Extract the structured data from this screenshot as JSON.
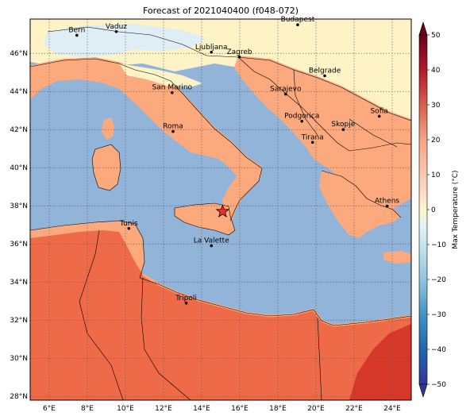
{
  "title": "Forecast of 2021040400 (f048-072)",
  "colorbar": {
    "label": "Max Temperature (°C)",
    "ticks": [
      "50",
      "40",
      "30",
      "20",
      "10",
      "0",
      "−10",
      "−20",
      "−30",
      "−40",
      "−50"
    ],
    "colors": [
      "#67001f",
      "#b2182b",
      "#d6604d",
      "#f4a582",
      "#fddbc7",
      "#fff6c8",
      "#e0f3f8",
      "#92c5de",
      "#4393c3",
      "#2166ac",
      "#313695"
    ]
  },
  "axes": {
    "lon_ticks": [
      "6°E",
      "8°E",
      "10°E",
      "12°E",
      "14°E",
      "16°E",
      "18°E",
      "20°E",
      "22°E",
      "24°E"
    ],
    "lat_ticks": [
      "46°N",
      "44°N",
      "42°N",
      "40°N",
      "38°N",
      "36°N",
      "34°N",
      "32°N",
      "30°N",
      "28°N"
    ]
  },
  "fill_colors": {
    "sea": "#91b4d8",
    "cool": "#fdf3c6",
    "pale": "#dfeef5",
    "warm": "#fca97e",
    "hot": "#ef6a48",
    "very_hot": "#d6382a"
  },
  "cities": [
    {
      "name": "Bern",
      "lon": 7.45,
      "lat": 46.95
    },
    {
      "name": "Vaduz",
      "lon": 9.52,
      "lat": 47.14
    },
    {
      "name": "Budapest",
      "lon": 19.04,
      "lat": 47.5
    },
    {
      "name": "Ljubljana",
      "lon": 14.51,
      "lat": 46.06
    },
    {
      "name": "Zagreb",
      "lon": 15.98,
      "lat": 45.81
    },
    {
      "name": "Belgrade",
      "lon": 20.46,
      "lat": 44.82
    },
    {
      "name": "San Marino",
      "lon": 12.45,
      "lat": 43.94
    },
    {
      "name": "Sarajevo",
      "lon": 18.41,
      "lat": 43.86
    },
    {
      "name": "Sofia",
      "lon": 23.32,
      "lat": 42.7
    },
    {
      "name": "Podgorica",
      "lon": 19.26,
      "lat": 42.44
    },
    {
      "name": "Skopje",
      "lon": 21.43,
      "lat": 42.0
    },
    {
      "name": "Roma",
      "lon": 12.5,
      "lat": 41.9
    },
    {
      "name": "Tirana",
      "lon": 19.82,
      "lat": 41.33
    },
    {
      "name": "Athens",
      "lon": 23.73,
      "lat": 37.98
    },
    {
      "name": "Tunis",
      "lon": 10.18,
      "lat": 36.81
    },
    {
      "name": "La Valette",
      "lon": 14.51,
      "lat": 35.9
    },
    {
      "name": "Tripoli",
      "lon": 13.19,
      "lat": 32.89
    }
  ],
  "marker": {
    "name": "star-marker",
    "lon": 15.1,
    "lat": 37.7,
    "color": "#e8302a"
  }
}
